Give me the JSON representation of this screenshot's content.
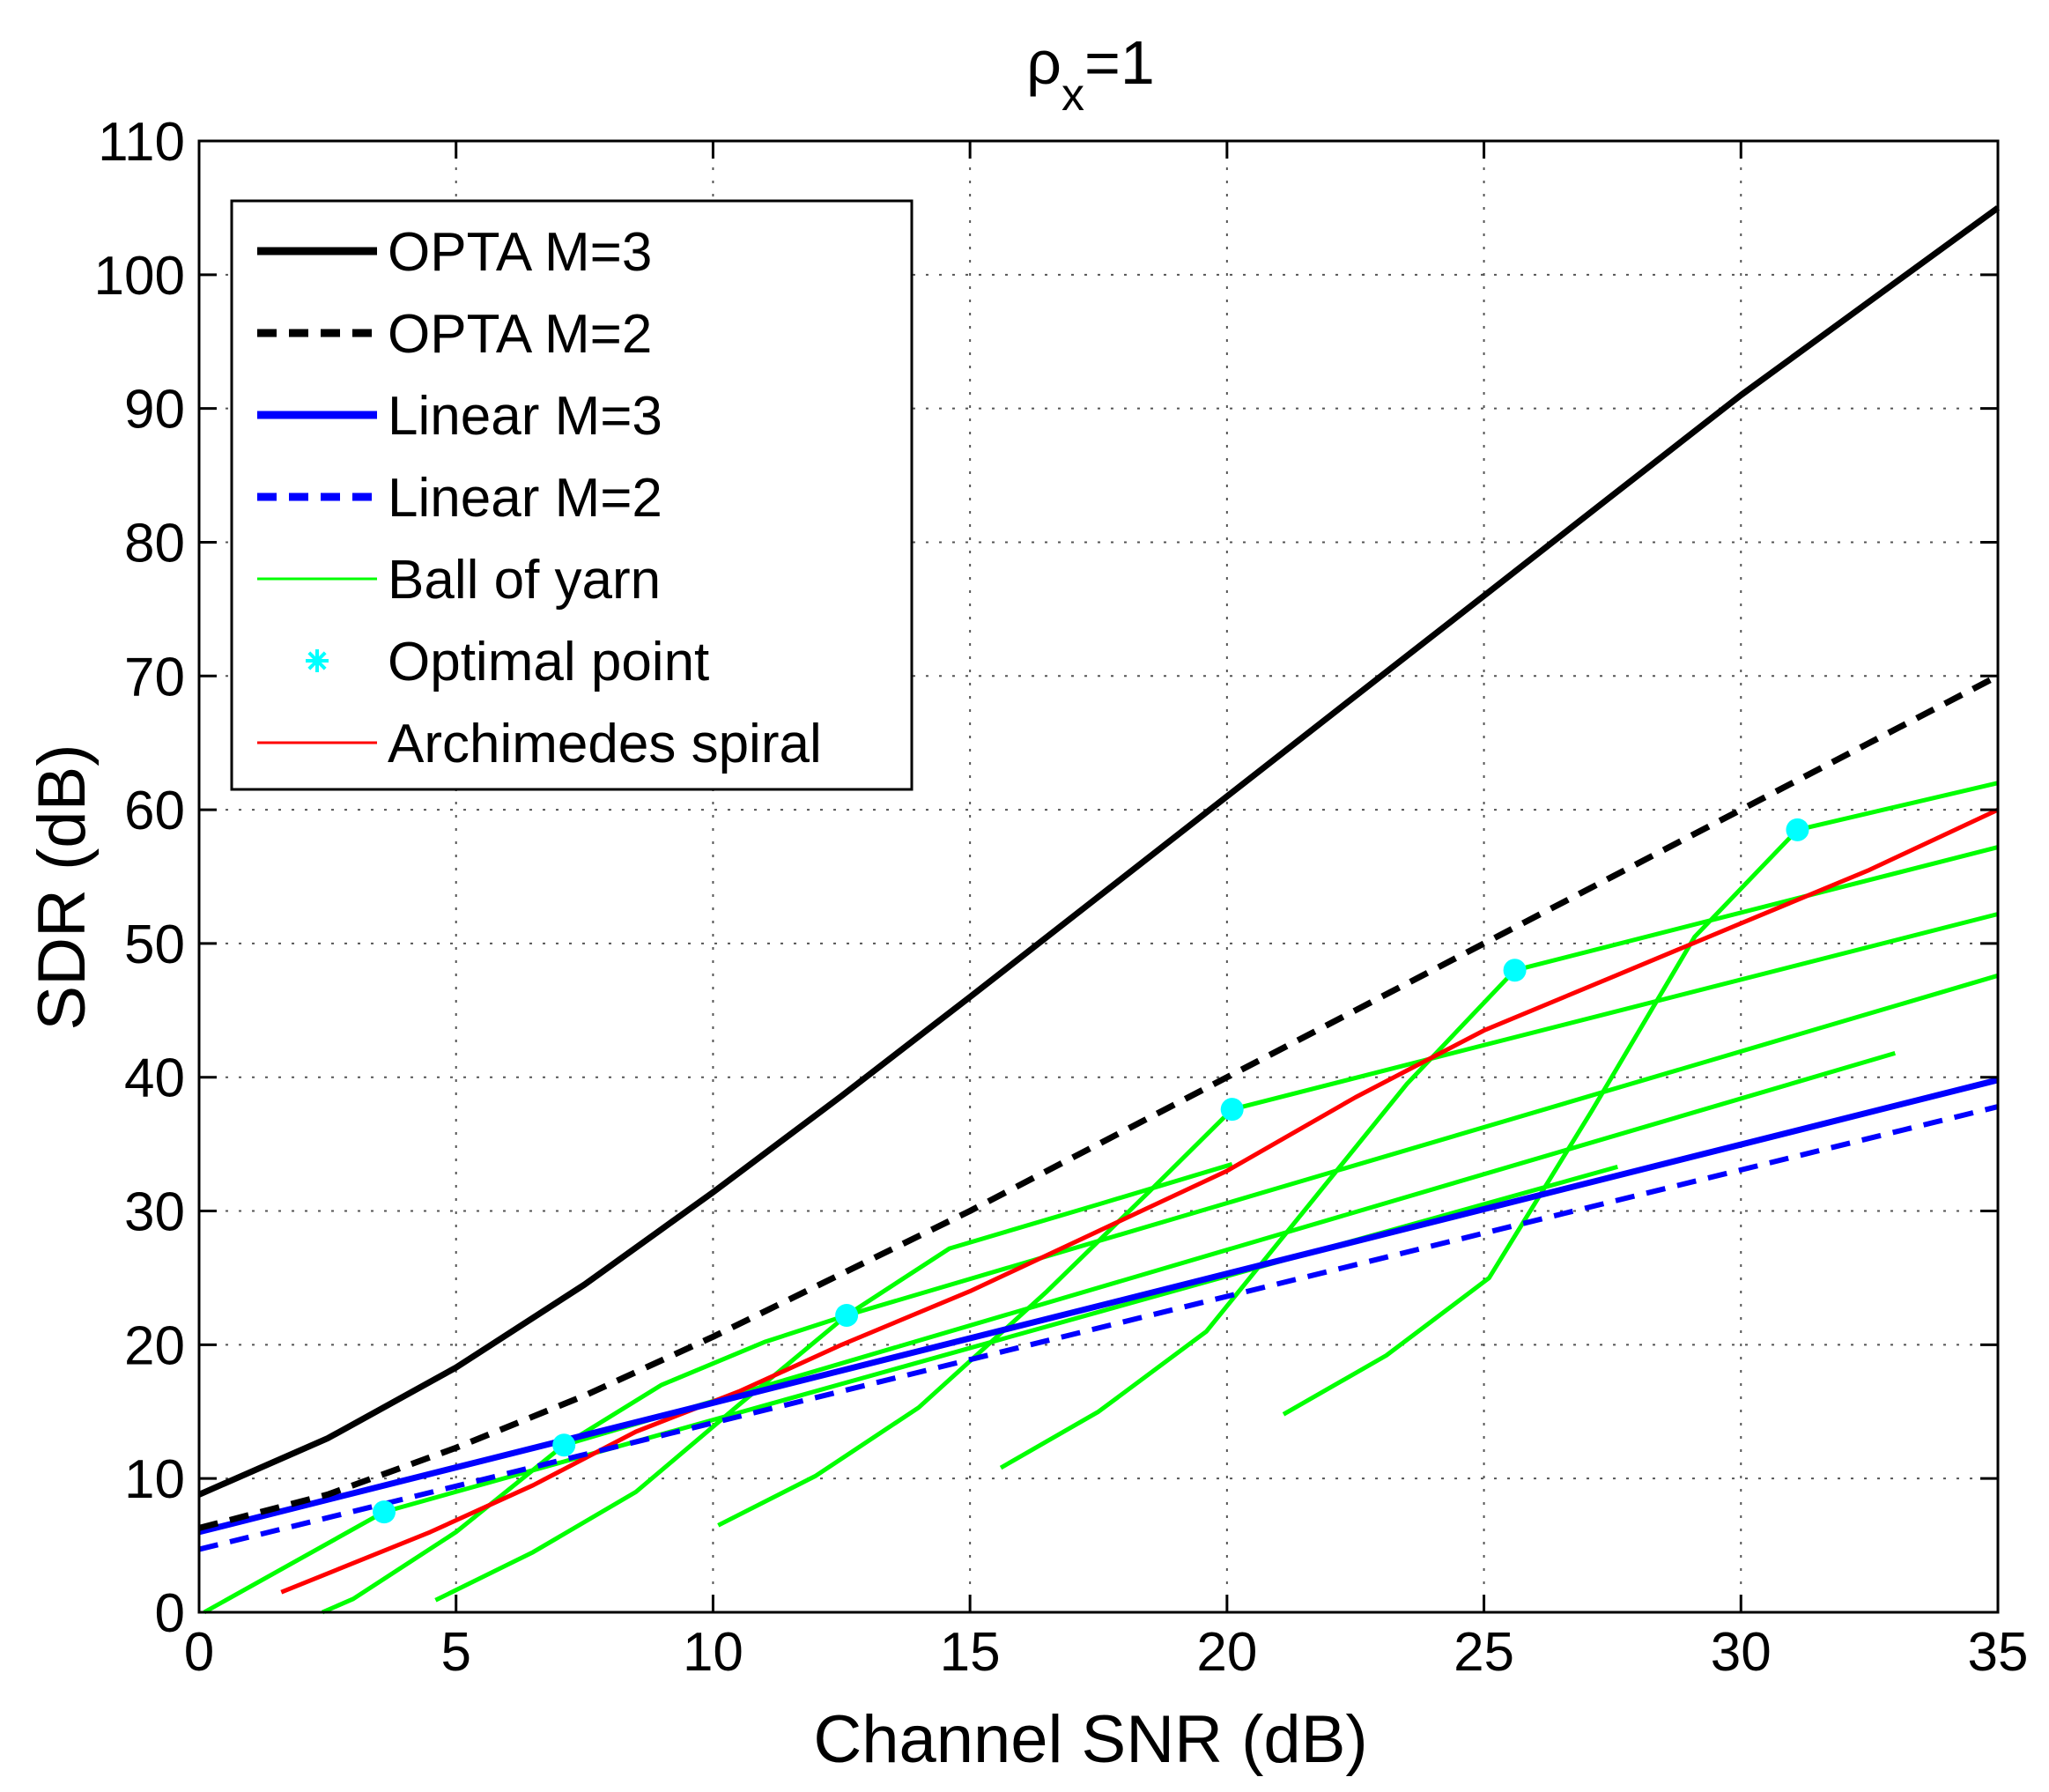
{
  "chart_data": {
    "type": "line",
    "title": "ρ",
    "title_subscript": "x",
    "title_suffix": "=1",
    "xlabel": "Channel SNR (dB)",
    "ylabel": "SDR (dB)",
    "xlim": [
      0,
      35
    ],
    "ylim": [
      0,
      110
    ],
    "xticks": [
      0,
      5,
      10,
      15,
      20,
      25,
      30,
      35
    ],
    "yticks": [
      0,
      10,
      20,
      30,
      40,
      50,
      60,
      70,
      80,
      90,
      100,
      110
    ],
    "grid": true,
    "legend_position": "top-left",
    "legend": [
      {
        "label": "OPTA M=3",
        "color": "#000000",
        "style": "solid-thick"
      },
      {
        "label": "OPTA M=2",
        "color": "#000000",
        "style": "dashed-thick"
      },
      {
        "label": "Linear M=3",
        "color": "#0000ff",
        "style": "solid-thick"
      },
      {
        "label": "Linear M=2",
        "color": "#0000ff",
        "style": "dashed-thick"
      },
      {
        "label": "Ball of yarn",
        "color": "#00ff00",
        "style": "solid-thin"
      },
      {
        "label": "Optimal point",
        "color": "#00ffff",
        "style": "marker"
      },
      {
        "label": "Archimedes spiral",
        "color": "#ff0000",
        "style": "solid-thin"
      }
    ],
    "series": [
      {
        "name": "OPTA M=3",
        "color": "#000000",
        "width": 7,
        "dash": "",
        "x": [
          0,
          2.5,
          5,
          7.5,
          10,
          12.5,
          15,
          17.5,
          20,
          22.5,
          25,
          27.5,
          30,
          32.5,
          35
        ],
        "y": [
          8.8,
          13,
          18.3,
          24.5,
          31.4,
          38.6,
          46,
          53.5,
          61,
          68.5,
          76,
          83.5,
          91,
          98,
          105
        ]
      },
      {
        "name": "OPTA M=2",
        "color": "#000000",
        "width": 7,
        "dash": "22,14",
        "x": [
          0,
          2.5,
          5,
          7.5,
          10,
          12.5,
          15,
          17.5,
          20,
          22.5,
          25,
          27.5,
          30,
          32.5,
          35
        ],
        "y": [
          6.3,
          8.8,
          12.3,
          16.2,
          20.6,
          25.3,
          30,
          35,
          40,
          45,
          50,
          55,
          60,
          65,
          70
        ]
      },
      {
        "name": "Linear M=3",
        "color": "#0000ff",
        "width": 7,
        "dash": "",
        "x": [
          0,
          35
        ],
        "y": [
          6,
          39.8
        ]
      },
      {
        "name": "Linear M=2",
        "color": "#0000ff",
        "width": 6,
        "dash": "22,14",
        "x": [
          0,
          35
        ],
        "y": [
          4.7,
          37.8
        ]
      },
      {
        "name": "Archimedes spiral",
        "color": "#ff0000",
        "width": 5,
        "dash": "",
        "x": [
          1.6,
          4.5,
          6.5,
          8.5,
          10.5,
          12.5,
          15,
          17.5,
          20,
          22.5,
          25,
          27.5,
          30,
          32.5,
          35
        ],
        "y": [
          1.5,
          6,
          9.5,
          13.5,
          16.5,
          20,
          24,
          28.5,
          33,
          38.5,
          43.5,
          47.5,
          51.5,
          55.5,
          60
        ]
      },
      {
        "name": "Ball of yarn (down 1)",
        "color": "#00ff00",
        "width": 5,
        "dash": "",
        "x": [
          0.1,
          3.6
        ],
        "y": [
          0,
          7.5
        ]
      },
      {
        "name": "Ball of yarn (up 1)",
        "color": "#00ff00",
        "width": 5,
        "dash": "",
        "x": [
          3.6,
          27.6
        ],
        "y": [
          7.5,
          33.3
        ]
      },
      {
        "name": "Ball of yarn (down 2)",
        "color": "#00ff00",
        "width": 5,
        "dash": "",
        "x": [
          2.4,
          3,
          5,
          7.1
        ],
        "y": [
          0,
          1,
          6,
          12.5
        ]
      },
      {
        "name": "Ball of yarn (up 2)",
        "color": "#00ff00",
        "width": 5,
        "dash": "",
        "x": [
          7.1,
          33
        ],
        "y": [
          12.5,
          41.8
        ]
      },
      {
        "name": "Ball of yarn (down 3)",
        "color": "#00ff00",
        "width": 5,
        "dash": "",
        "x": [
          4.6,
          6.5,
          8.5,
          10.5,
          12.6
        ],
        "y": [
          0.9,
          4.5,
          9,
          15.5,
          22.2
        ]
      },
      {
        "name": "Ball of yarn (up 3)",
        "color": "#00ff00",
        "width": 5,
        "dash": "",
        "x": [
          12.6,
          35
        ],
        "y": [
          22.2,
          47.6
        ]
      },
      {
        "name": "Ball of yarn (down 4)",
        "color": "#00ff00",
        "width": 5,
        "dash": "",
        "x": [
          10.1,
          12,
          14,
          16.5,
          18.5,
          20.1
        ],
        "y": [
          6.5,
          10.2,
          15.3,
          24,
          31.5,
          37.6
        ]
      },
      {
        "name": "Ball of yarn (up 4)",
        "color": "#00ff00",
        "width": 5,
        "dash": "",
        "x": [
          20.1,
          35
        ],
        "y": [
          37.6,
          52.2
        ]
      },
      {
        "name": "Ball of yarn (down 5)",
        "color": "#00ff00",
        "width": 5,
        "dash": "",
        "x": [
          15.6,
          17.5,
          19.6,
          21.5,
          23.5,
          25.6
        ],
        "y": [
          10.8,
          15,
          21,
          30,
          39.5,
          48
        ]
      },
      {
        "name": "Ball of yarn (up 5)",
        "color": "#00ff00",
        "width": 5,
        "dash": "",
        "x": [
          25.6,
          35
        ],
        "y": [
          48,
          57.2
        ]
      },
      {
        "name": "Ball of yarn (down 6)",
        "color": "#00ff00",
        "width": 5,
        "dash": "",
        "x": [
          21.1,
          23.1,
          25.1,
          27.1,
          29.1,
          31.1
        ],
        "y": [
          14.8,
          19.2,
          25,
          37.5,
          50.5,
          58.5
        ]
      },
      {
        "name": "Ball of yarn (up 6)",
        "color": "#00ff00",
        "width": 5,
        "dash": "",
        "x": [
          31.1,
          35
        ],
        "y": [
          58.5,
          62
        ]
      },
      {
        "name": "Ball of yarn (low tail)",
        "color": "#00ff00",
        "width": 5,
        "dash": "",
        "x": [
          7.1,
          9,
          11,
          12.6,
          14.6,
          17.5,
          20.1
        ],
        "y": [
          12.5,
          17,
          20.2,
          22.2,
          27.2,
          30.5,
          33.5
        ]
      }
    ],
    "optimal_points": {
      "name": "Optimal point",
      "color": "#00ffff",
      "x": [
        3.6,
        7.1,
        12.6,
        20.1,
        25.6,
        31.1
      ],
      "y": [
        7.5,
        12.5,
        22.2,
        37.6,
        48,
        58.5
      ]
    }
  }
}
